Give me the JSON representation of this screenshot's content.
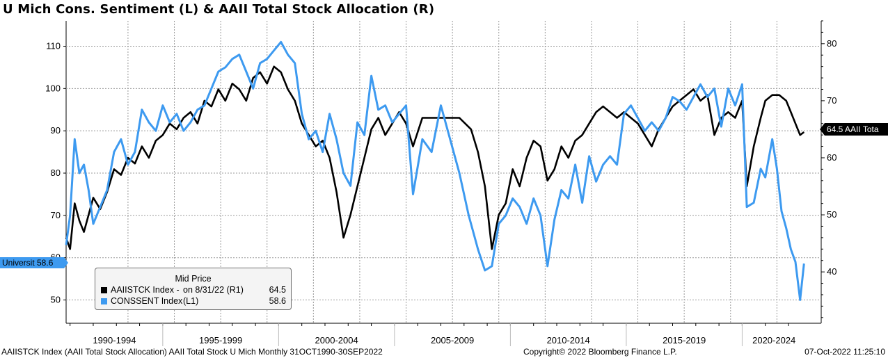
{
  "title": "U Mich Cons. Sentiment (L) & AAII Total Stock Allocation (R)",
  "legend": {
    "heading": "Mid Price",
    "rows": [
      {
        "name": "AAIISTCK Index -",
        "info": "on 8/31/22  (R1)",
        "value": "64.5",
        "color": "#000000"
      },
      {
        "name": "CONSSENT Index",
        "info": "(L1)",
        "value": "58.6",
        "color": "#3d9af0"
      }
    ]
  },
  "tags": {
    "left": "Universit 58.6",
    "right": "64.5 AAII Tota"
  },
  "footer": {
    "left": "AAIISTCK Index (AAII Total Stock Allocation) AAII Total Stock U Mich  Monthly 31OCT1990-30SEP2022",
    "middle": "Copyright© 2022 Bloomberg Finance L.P.",
    "right": "07-Oct-2022 11:25:10"
  },
  "chart_data": {
    "type": "line",
    "title": "U Mich Cons. Sentiment (L) & AAII Total Stock Allocation (R)",
    "x_categories": [
      "1990-1994",
      "1995-1999",
      "2000-2004",
      "2005-2009",
      "2010-2014",
      "2015-2019",
      "2020-2024"
    ],
    "x_range": [
      1990.83,
      2022.75
    ],
    "left_axis": {
      "ticks": [
        50,
        60,
        70,
        80,
        90,
        100,
        110
      ],
      "range": [
        44.5,
        116
      ]
    },
    "right_axis": {
      "ticks": [
        40,
        50,
        60,
        70,
        80
      ],
      "range": [
        31,
        84
      ]
    },
    "grid": true,
    "legend_position": "bottom-left",
    "colors": {
      "aaii": "#000000",
      "conssent": "#3d9af0"
    },
    "series": [
      {
        "name": "AAIISTCK Index",
        "axis": "right",
        "color": "#000000",
        "points": [
          [
            1990.83,
            46
          ],
          [
            1991.0,
            44
          ],
          [
            1991.2,
            52
          ],
          [
            1991.4,
            49
          ],
          [
            1991.6,
            47
          ],
          [
            1991.8,
            50
          ],
          [
            1992.0,
            53
          ],
          [
            1992.3,
            51
          ],
          [
            1992.6,
            54
          ],
          [
            1992.9,
            58
          ],
          [
            1993.2,
            57
          ],
          [
            1993.5,
            60
          ],
          [
            1993.8,
            59
          ],
          [
            1994.1,
            62
          ],
          [
            1994.4,
            60
          ],
          [
            1994.7,
            63
          ],
          [
            1995.0,
            64
          ],
          [
            1995.3,
            66
          ],
          [
            1995.6,
            65
          ],
          [
            1995.9,
            67
          ],
          [
            1996.2,
            68
          ],
          [
            1996.5,
            66
          ],
          [
            1996.8,
            70
          ],
          [
            1997.1,
            69
          ],
          [
            1997.4,
            72
          ],
          [
            1997.7,
            70
          ],
          [
            1998.0,
            73
          ],
          [
            1998.3,
            72
          ],
          [
            1998.6,
            70
          ],
          [
            1998.9,
            74
          ],
          [
            1999.2,
            75
          ],
          [
            1999.5,
            73
          ],
          [
            1999.8,
            76
          ],
          [
            2000.1,
            75
          ],
          [
            2000.4,
            72
          ],
          [
            2000.7,
            70
          ],
          [
            2001.0,
            66
          ],
          [
            2001.3,
            64
          ],
          [
            2001.6,
            62
          ],
          [
            2001.9,
            63
          ],
          [
            2002.2,
            60
          ],
          [
            2002.5,
            54
          ],
          [
            2002.8,
            46
          ],
          [
            2003.1,
            50
          ],
          [
            2003.4,
            55
          ],
          [
            2003.7,
            60
          ],
          [
            2004.0,
            65
          ],
          [
            2004.3,
            67
          ],
          [
            2004.6,
            64
          ],
          [
            2004.9,
            66
          ],
          [
            2005.2,
            68
          ],
          [
            2005.5,
            66
          ],
          [
            2005.8,
            62
          ],
          [
            2006.2,
            67
          ],
          [
            2007.8,
            67
          ],
          [
            2008.3,
            65
          ],
          [
            2008.6,
            61
          ],
          [
            2008.9,
            55
          ],
          [
            2009.2,
            44
          ],
          [
            2009.5,
            50
          ],
          [
            2009.8,
            52
          ],
          [
            2010.1,
            58
          ],
          [
            2010.4,
            55
          ],
          [
            2010.7,
            60
          ],
          [
            2011.0,
            63
          ],
          [
            2011.3,
            62
          ],
          [
            2011.6,
            56
          ],
          [
            2011.9,
            58
          ],
          [
            2012.2,
            62
          ],
          [
            2012.5,
            60
          ],
          [
            2012.8,
            63
          ],
          [
            2013.1,
            64
          ],
          [
            2013.4,
            66
          ],
          [
            2013.7,
            68
          ],
          [
            2014.0,
            69
          ],
          [
            2014.3,
            68
          ],
          [
            2014.6,
            67
          ],
          [
            2014.9,
            68
          ],
          [
            2015.2,
            67
          ],
          [
            2015.5,
            66
          ],
          [
            2015.8,
            64
          ],
          [
            2016.1,
            62
          ],
          [
            2016.4,
            65
          ],
          [
            2016.7,
            67
          ],
          [
            2017.0,
            69
          ],
          [
            2017.3,
            70
          ],
          [
            2017.6,
            71
          ],
          [
            2017.9,
            72
          ],
          [
            2018.2,
            70
          ],
          [
            2018.5,
            71
          ],
          [
            2018.8,
            64
          ],
          [
            2019.1,
            67
          ],
          [
            2019.4,
            68
          ],
          [
            2019.7,
            67
          ],
          [
            2020.0,
            70
          ],
          [
            2020.2,
            55
          ],
          [
            2020.5,
            62
          ],
          [
            2020.8,
            67
          ],
          [
            2021.0,
            70
          ],
          [
            2021.3,
            71
          ],
          [
            2021.6,
            71
          ],
          [
            2021.9,
            70
          ],
          [
            2022.1,
            68
          ],
          [
            2022.3,
            66
          ],
          [
            2022.5,
            64
          ],
          [
            2022.67,
            64.5
          ]
        ]
      },
      {
        "name": "CONSSENT Index",
        "axis": "left",
        "color": "#3d9af0",
        "points": [
          [
            1990.83,
            63
          ],
          [
            1991.0,
            70
          ],
          [
            1991.2,
            88
          ],
          [
            1991.4,
            80
          ],
          [
            1991.6,
            82
          ],
          [
            1991.8,
            76
          ],
          [
            1992.0,
            68
          ],
          [
            1992.3,
            72
          ],
          [
            1992.6,
            76
          ],
          [
            1992.9,
            85
          ],
          [
            1993.2,
            88
          ],
          [
            1993.5,
            82
          ],
          [
            1993.8,
            85
          ],
          [
            1994.1,
            95
          ],
          [
            1994.4,
            92
          ],
          [
            1994.7,
            90
          ],
          [
            1995.0,
            96
          ],
          [
            1995.3,
            92
          ],
          [
            1995.6,
            94
          ],
          [
            1995.9,
            90
          ],
          [
            1996.2,
            92
          ],
          [
            1996.5,
            95
          ],
          [
            1996.8,
            96
          ],
          [
            1997.1,
            100
          ],
          [
            1997.4,
            104
          ],
          [
            1997.7,
            105
          ],
          [
            1998.0,
            107
          ],
          [
            1998.3,
            108
          ],
          [
            1998.6,
            104
          ],
          [
            1998.9,
            100
          ],
          [
            1999.2,
            106
          ],
          [
            1999.5,
            107
          ],
          [
            1999.8,
            109
          ],
          [
            2000.1,
            111
          ],
          [
            2000.4,
            108
          ],
          [
            2000.7,
            106
          ],
          [
            2001.0,
            94
          ],
          [
            2001.3,
            88
          ],
          [
            2001.6,
            90
          ],
          [
            2001.9,
            85
          ],
          [
            2002.2,
            94
          ],
          [
            2002.5,
            88
          ],
          [
            2002.8,
            80
          ],
          [
            2003.1,
            77
          ],
          [
            2003.4,
            92
          ],
          [
            2003.7,
            89
          ],
          [
            2004.0,
            103
          ],
          [
            2004.3,
            95
          ],
          [
            2004.6,
            96
          ],
          [
            2004.9,
            92
          ],
          [
            2005.2,
            94
          ],
          [
            2005.5,
            96
          ],
          [
            2005.8,
            75
          ],
          [
            2006.2,
            88
          ],
          [
            2006.6,
            85
          ],
          [
            2007.0,
            96
          ],
          [
            2007.4,
            88
          ],
          [
            2007.8,
            80
          ],
          [
            2008.2,
            70
          ],
          [
            2008.6,
            62
          ],
          [
            2008.9,
            57
          ],
          [
            2009.2,
            58
          ],
          [
            2009.5,
            68
          ],
          [
            2009.8,
            70
          ],
          [
            2010.1,
            74
          ],
          [
            2010.4,
            72
          ],
          [
            2010.7,
            68
          ],
          [
            2011.0,
            74
          ],
          [
            2011.3,
            70
          ],
          [
            2011.6,
            58
          ],
          [
            2011.9,
            69
          ],
          [
            2012.2,
            76
          ],
          [
            2012.5,
            74
          ],
          [
            2012.8,
            82
          ],
          [
            2013.1,
            73
          ],
          [
            2013.4,
            84
          ],
          [
            2013.7,
            78
          ],
          [
            2014.0,
            82
          ],
          [
            2014.3,
            84
          ],
          [
            2014.6,
            82
          ],
          [
            2014.9,
            94
          ],
          [
            2015.2,
            96
          ],
          [
            2015.5,
            93
          ],
          [
            2015.8,
            90
          ],
          [
            2016.1,
            92
          ],
          [
            2016.4,
            90
          ],
          [
            2016.7,
            93
          ],
          [
            2017.0,
            98
          ],
          [
            2017.3,
            97
          ],
          [
            2017.6,
            95
          ],
          [
            2017.9,
            98
          ],
          [
            2018.2,
            101
          ],
          [
            2018.5,
            98
          ],
          [
            2018.8,
            100
          ],
          [
            2019.1,
            91
          ],
          [
            2019.4,
            100
          ],
          [
            2019.7,
            96
          ],
          [
            2020.0,
            101
          ],
          [
            2020.2,
            72
          ],
          [
            2020.5,
            73
          ],
          [
            2020.8,
            81
          ],
          [
            2021.0,
            79
          ],
          [
            2021.3,
            88
          ],
          [
            2021.5,
            81
          ],
          [
            2021.7,
            71
          ],
          [
            2021.9,
            67
          ],
          [
            2022.1,
            62
          ],
          [
            2022.3,
            59
          ],
          [
            2022.5,
            50
          ],
          [
            2022.67,
            58.6
          ]
        ]
      }
    ]
  }
}
